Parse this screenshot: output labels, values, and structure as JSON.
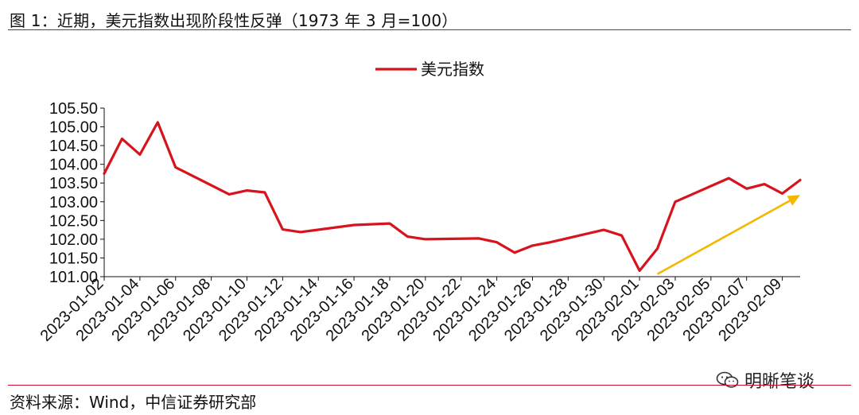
{
  "header": {
    "title": "图 1：近期，美元指数出现阶段性反弹（1973 年 3 月=100）"
  },
  "footer": {
    "source": "资料来源：Wind，中信证券研究部"
  },
  "watermark": {
    "text": "明晰笔谈",
    "icon": "wechat-icon"
  },
  "colors": {
    "line": "#d7141e",
    "arrow": "#f5b800",
    "rule": "#c8102e",
    "axis": "#111111"
  },
  "chart_data": {
    "type": "line",
    "title": "",
    "xlabel": "",
    "ylabel": "",
    "ylim": [
      101.0,
      105.5
    ],
    "yticks": [
      "105.50",
      "105.00",
      "104.50",
      "104.00",
      "103.50",
      "103.00",
      "102.50",
      "102.00",
      "101.50",
      "101.00"
    ],
    "xlim": [
      "2023-01-02",
      "2023-02-10"
    ],
    "xticks": [
      "2023-01-02",
      "2023-01-04",
      "2023-01-06",
      "2023-01-08",
      "2023-01-10",
      "2023-01-12",
      "2023-01-14",
      "2023-01-16",
      "2023-01-18",
      "2023-01-20",
      "2023-01-22",
      "2023-01-24",
      "2023-01-26",
      "2023-01-28",
      "2023-01-30",
      "2023-02-01",
      "2023-02-03",
      "2023-02-05",
      "2023-02-07",
      "2023-02-09"
    ],
    "legend": {
      "position": "top-center",
      "entries": [
        "美元指数"
      ]
    },
    "grid": false,
    "series": [
      {
        "name": "美元指数",
        "points": [
          [
            "2023-01-02",
            103.75
          ],
          [
            "2023-01-03",
            104.68
          ],
          [
            "2023-01-04",
            104.26
          ],
          [
            "2023-01-05",
            105.12
          ],
          [
            "2023-01-06",
            103.92
          ],
          [
            "2023-01-09",
            103.2
          ],
          [
            "2023-01-10",
            103.3
          ],
          [
            "2023-01-11",
            103.25
          ],
          [
            "2023-01-12",
            102.26
          ],
          [
            "2023-01-13",
            102.19
          ],
          [
            "2023-01-16",
            102.38
          ],
          [
            "2023-01-18",
            102.42
          ],
          [
            "2023-01-19",
            102.07
          ],
          [
            "2023-01-20",
            102.0
          ],
          [
            "2023-01-23",
            102.02
          ],
          [
            "2023-01-24",
            101.92
          ],
          [
            "2023-01-25",
            101.64
          ],
          [
            "2023-01-26",
            101.83
          ],
          [
            "2023-01-27",
            101.92
          ],
          [
            "2023-01-30",
            102.25
          ],
          [
            "2023-01-31",
            102.1
          ],
          [
            "2023-02-01",
            101.16
          ],
          [
            "2023-02-02",
            101.75
          ],
          [
            "2023-02-03",
            103.0
          ],
          [
            "2023-02-06",
            103.63
          ],
          [
            "2023-02-07",
            103.35
          ],
          [
            "2023-02-08",
            103.47
          ],
          [
            "2023-02-09",
            103.22
          ],
          [
            "2023-02-10",
            103.58
          ]
        ]
      }
    ],
    "annotations": [
      {
        "type": "arrow",
        "from": [
          "2023-02-02",
          101.07
        ],
        "to": [
          "2023-02-10",
          103.18
        ],
        "color": "#f5b800"
      }
    ]
  }
}
